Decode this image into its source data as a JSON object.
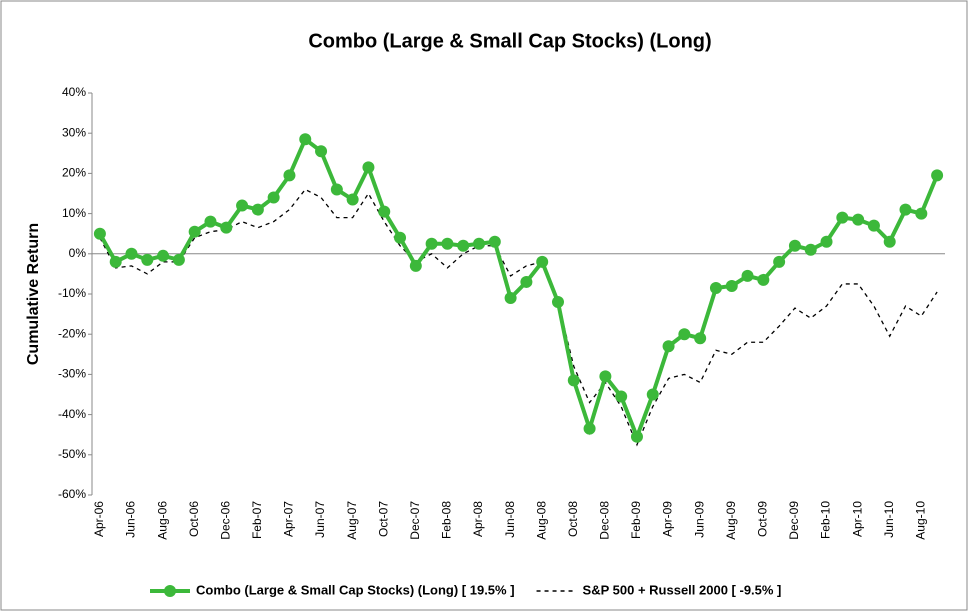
{
  "chart_data": {
    "type": "line",
    "title": "Combo (Large & Small Cap Stocks) (Long)",
    "y_label": "Cumulative Return",
    "categories": [
      "Apr-06",
      null,
      "Jun-06",
      null,
      "Aug-06",
      null,
      "Oct-06",
      null,
      "Dec-06",
      null,
      "Feb-07",
      null,
      "Apr-07",
      null,
      "Jun-07",
      null,
      "Aug-07",
      null,
      "Oct-07",
      null,
      "Dec-07",
      null,
      "Feb-08",
      null,
      "Apr-08",
      null,
      "Jun-08",
      null,
      "Aug-08",
      null,
      "Oct-08",
      null,
      "Dec-08",
      null,
      "Feb-09",
      null,
      "Apr-09",
      null,
      "Jun-09",
      null,
      "Aug-09",
      null,
      "Oct-09",
      null,
      "Dec-09",
      null,
      "Feb-10",
      null,
      "Apr-10",
      null,
      "Jun-10",
      null,
      "Aug-10",
      null
    ],
    "series": [
      {
        "name": "Combo (Large & Small Cap Stocks) (Long) [ 19.5% ]",
        "color": "#3cb83a",
        "markers": true,
        "dashed": false,
        "values": [
          5,
          -2,
          0,
          -1.5,
          -0.5,
          -1.5,
          5.5,
          8,
          6.5,
          12,
          11,
          14,
          19.5,
          28.5,
          25.5,
          16,
          13.5,
          21.5,
          10.5,
          4,
          -3,
          2.5,
          2.5,
          2,
          2.5,
          3,
          -11,
          -7,
          -2,
          -12,
          -31.5,
          -43.5,
          -30.5,
          -35.5,
          -45.5,
          -35,
          -23,
          -20,
          -21,
          -8.5,
          -8,
          -5.5,
          -6.5,
          -2,
          2,
          1,
          3,
          9,
          8.5,
          7,
          3,
          11,
          10,
          19.5
        ]
      },
      {
        "name": "S&P 500 + Russell 2000 [ -9.5% ]",
        "color": "#000000",
        "markers": false,
        "dashed": true,
        "values": [
          4,
          -3.5,
          -3,
          -5,
          -2,
          -2,
          4,
          5.5,
          6,
          8,
          6.5,
          8,
          11,
          16,
          14,
          9,
          9,
          15,
          8,
          2,
          -2,
          0,
          -3.5,
          0,
          2,
          2,
          -5.5,
          -3,
          -2,
          -12,
          -28,
          -37,
          -32,
          -38,
          -47.5,
          -38,
          -31,
          -30,
          -32,
          -24,
          -25,
          -22,
          -22,
          -18,
          -13.5,
          -16,
          -13,
          -7.5,
          -7.5,
          -13,
          -20.5,
          -13,
          -15.5,
          -9.5
        ]
      }
    ],
    "ylim": [
      -60,
      40
    ],
    "yticks": [
      {
        "value": -60,
        "label": "-60%"
      },
      {
        "value": -50,
        "label": "-50%"
      },
      {
        "value": -40,
        "label": "-40%"
      },
      {
        "value": -30,
        "label": "-30%"
      },
      {
        "value": -20,
        "label": "-20%"
      },
      {
        "value": -10,
        "label": "-10%"
      },
      {
        "value": 0,
        "label": "0%"
      },
      {
        "value": 10,
        "label": "10%"
      },
      {
        "value": 20,
        "label": "20%"
      },
      {
        "value": 30,
        "label": "30%"
      },
      {
        "value": 40,
        "label": "40%"
      }
    ],
    "grid": false,
    "legend": "bottom"
  }
}
